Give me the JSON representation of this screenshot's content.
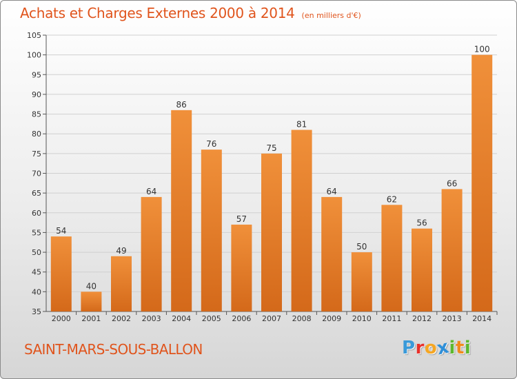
{
  "header": {
    "title": "Achats et Charges Externes 2000 à 2014",
    "unit": "(en milliers d'€)"
  },
  "footer": {
    "commune": "SAINT-MARS-SOUS-BALLON",
    "logo_letters": [
      {
        "ch": "P",
        "color": "#3a9ad9"
      },
      {
        "ch": "r",
        "color": "#e8302a"
      },
      {
        "ch": "o",
        "color": "#f5a623"
      },
      {
        "ch": "x",
        "color": "#2f8fd8"
      },
      {
        "ch": "i",
        "color": "#5db82e"
      },
      {
        "ch": "t",
        "color": "#f08a1c"
      },
      {
        "ch": "i",
        "color": "#5db82e"
      }
    ]
  },
  "chart_data": {
    "type": "bar",
    "title": "Achats et Charges Externes 2000 à 2014",
    "subtitle": "(en milliers d'€)",
    "categories": [
      "2000",
      "2001",
      "2002",
      "2003",
      "2004",
      "2005",
      "2006",
      "2007",
      "2008",
      "2009",
      "2010",
      "2011",
      "2012",
      "2013",
      "2014"
    ],
    "values": [
      54,
      40,
      49,
      64,
      86,
      76,
      57,
      75,
      81,
      64,
      50,
      62,
      56,
      66,
      100
    ],
    "ylim": [
      35,
      105
    ],
    "yticks": [
      35,
      40,
      45,
      50,
      55,
      60,
      65,
      70,
      75,
      80,
      85,
      90,
      95,
      100,
      105
    ],
    "grid": true,
    "bar_color": "#f0903a",
    "bar_color_dark": "#d4691a"
  }
}
